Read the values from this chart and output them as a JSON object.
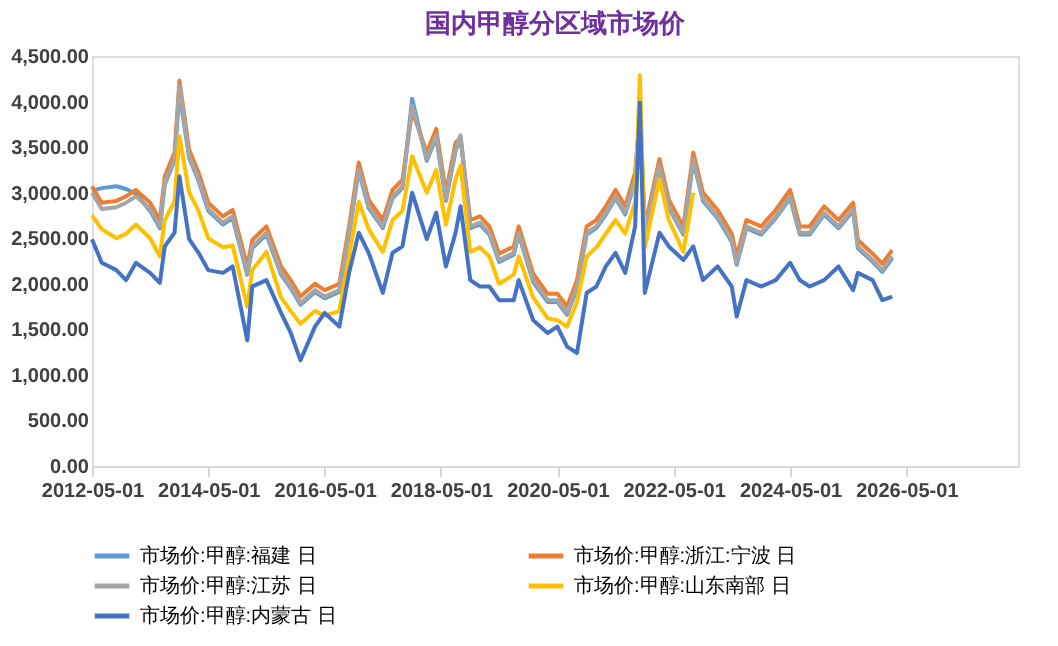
{
  "chart_data": {
    "type": "line",
    "title": "国内甲醇分区域市场价",
    "x": [
      "2012-05",
      "2012-07",
      "2012-10",
      "2012-12",
      "2013-02",
      "2013-05",
      "2013-07",
      "2013-08",
      "2013-10",
      "2013-11",
      "2014-01",
      "2014-03",
      "2014-05",
      "2014-08",
      "2014-10",
      "2015-01",
      "2015-02",
      "2015-05",
      "2015-08",
      "2015-10",
      "2015-12",
      "2016-03",
      "2016-05",
      "2016-08",
      "2016-10",
      "2016-12",
      "2017-02",
      "2017-05",
      "2017-07",
      "2017-09",
      "2017-11",
      "2018-02",
      "2018-04",
      "2018-06",
      "2018-08",
      "2018-09",
      "2018-11",
      "2019-01",
      "2019-03",
      "2019-05",
      "2019-08",
      "2019-09",
      "2019-12",
      "2020-03",
      "2020-05",
      "2020-07",
      "2020-09",
      "2020-11",
      "2021-01",
      "2021-03",
      "2021-05",
      "2021-07",
      "2021-09",
      "2021-10",
      "2021-11",
      "2022-02",
      "2022-04",
      "2022-07",
      "2022-09",
      "2022-11",
      "2023-02",
      "2023-05",
      "2023-06",
      "2023-08",
      "2023-11",
      "2024-02",
      "2024-05",
      "2024-07",
      "2024-09",
      "2024-12",
      "2025-03",
      "2025-06",
      "2025-07",
      "2025-10",
      "2025-12",
      "2026-02"
    ],
    "series": [
      {
        "name": "市场价:甲醇:福建 日",
        "color": "#5b9bd5",
        "values": [
          3020,
          3050,
          3070,
          3040,
          2990,
          2800,
          2610,
          3090,
          3350,
          4100,
          3380,
          3130,
          2800,
          2650,
          2720,
          2100,
          2390,
          2540,
          2100,
          1950,
          1770,
          1910,
          1840,
          1910,
          2540,
          3240,
          2830,
          2610,
          2940,
          3050,
          4030,
          3350,
          3610,
          2910,
          3460,
          3610,
          2610,
          2650,
          2540,
          2240,
          2320,
          2540,
          2020,
          1800,
          1800,
          1660,
          1950,
          2540,
          2610,
          2760,
          2940,
          2760,
          3130,
          3880,
          2540,
          3280,
          2830,
          2540,
          3350,
          2910,
          2720,
          2460,
          2210,
          2610,
          2540,
          2720,
          2940,
          2540,
          2540,
          2760,
          2610,
          2800,
          2390,
          2240,
          2130,
          2280
        ]
      },
      {
        "name": "市场价:甲醇:浙江:宁波 日",
        "color": "#ed7d31",
        "values": [
          3070,
          2890,
          2910,
          2960,
          3030,
          2890,
          2700,
          3180,
          3440,
          4230,
          3470,
          3220,
          2890,
          2740,
          2810,
          2190,
          2480,
          2630,
          2190,
          2040,
          1860,
          2000,
          1930,
          2000,
          2630,
          3330,
          2920,
          2700,
          3030,
          3140,
          3900,
          3440,
          3700,
          3000,
          3550,
          3600,
          2700,
          2740,
          2630,
          2330,
          2410,
          2630,
          2110,
          1890,
          1890,
          1750,
          2040,
          2630,
          2700,
          2850,
          3030,
          2850,
          3220,
          3850,
          2630,
          3370,
          2920,
          2630,
          3440,
          3000,
          2810,
          2550,
          2300,
          2700,
          2630,
          2810,
          3030,
          2630,
          2630,
          2850,
          2700,
          2890,
          2480,
          2330,
          2220,
          2370
        ]
      },
      {
        "name": "市场价:甲醇:江苏 日",
        "color": "#a5a5a5",
        "values": [
          3000,
          2820,
          2840,
          2890,
          2960,
          2820,
          2630,
          3110,
          3370,
          4180,
          3400,
          3150,
          2820,
          2670,
          2740,
          2120,
          2410,
          2560,
          2120,
          1970,
          1790,
          1930,
          1860,
          1930,
          2560,
          3260,
          2850,
          2630,
          2960,
          3070,
          3960,
          3370,
          3630,
          2930,
          3480,
          3630,
          2630,
          2670,
          2560,
          2260,
          2340,
          2560,
          2040,
          1820,
          1820,
          1680,
          1970,
          2560,
          2630,
          2780,
          2960,
          2780,
          3150,
          3900,
          2560,
          3300,
          2850,
          2560,
          3370,
          2930,
          2740,
          2480,
          2230,
          2630,
          2560,
          2740,
          2960,
          2560,
          2560,
          2780,
          2630,
          2820,
          2410,
          2260,
          2150,
          2300
        ]
      },
      {
        "name": "市场价:甲醇:山东南部 日",
        "color": "#ffc000",
        "values": [
          2750,
          2600,
          2500,
          2550,
          2650,
          2500,
          2300,
          2700,
          2900,
          3620,
          3000,
          2800,
          2500,
          2400,
          2420,
          1750,
          2150,
          2350,
          1850,
          1700,
          1560,
          1700,
          1650,
          1700,
          2300,
          2900,
          2600,
          2350,
          2700,
          2800,
          3400,
          3000,
          3250,
          2650,
          3150,
          3300,
          2350,
          2400,
          2300,
          2000,
          2100,
          2300,
          1850,
          1620,
          1600,
          1530,
          1800,
          2300,
          2400,
          2550,
          2700,
          2550,
          2900,
          4290,
          2400,
          3150,
          2700,
          2350,
          3000,
          null,
          null,
          null,
          null,
          null,
          null,
          null,
          null,
          null,
          null,
          null,
          null,
          null,
          null,
          null,
          null,
          null
        ]
      },
      {
        "name": "市场价:甲醇:内蒙古 日",
        "color": "#4472c4",
        "values": [
          2490,
          2230,
          2150,
          2040,
          2230,
          2120,
          2010,
          2410,
          2560,
          3180,
          2490,
          2340,
          2150,
          2120,
          2190,
          1380,
          1970,
          2040,
          1680,
          1460,
          1160,
          1530,
          1680,
          1530,
          2120,
          2560,
          2340,
          1900,
          2340,
          2410,
          3000,
          2490,
          2780,
          2190,
          2560,
          2850,
          2040,
          1970,
          1970,
          1820,
          1820,
          2040,
          1600,
          1460,
          1530,
          1310,
          1240,
          1900,
          1970,
          2190,
          2340,
          2120,
          2630,
          3990,
          1900,
          2560,
          2410,
          2260,
          2410,
          2040,
          2190,
          1970,
          1640,
          2040,
          1970,
          2040,
          2230,
          2040,
          1970,
          2040,
          2190,
          1930,
          2120,
          2040,
          1820,
          1860
        ]
      }
    ],
    "xlim": [
      "2012-05-01",
      "2028-04-01"
    ],
    "xticks": [
      "2012-05-01",
      "2014-05-01",
      "2016-05-01",
      "2018-05-01",
      "2020-05-01",
      "2022-05-01",
      "2024-05-01",
      "2026-05-01"
    ],
    "ylim": [
      0,
      4500
    ],
    "yticks": [
      {
        "value": 0,
        "label": "0.00"
      },
      {
        "value": 500,
        "label": "500.00"
      },
      {
        "value": 1000,
        "label": "1,000.00"
      },
      {
        "value": 1500,
        "label": "1,500.00"
      },
      {
        "value": 2000,
        "label": "2,000.00"
      },
      {
        "value": 2500,
        "label": "2,500.00"
      },
      {
        "value": 3000,
        "label": "3,000.00"
      },
      {
        "value": 3500,
        "label": "3,500.00"
      },
      {
        "value": 4000,
        "label": "4,000.00"
      },
      {
        "value": 4500,
        "label": "4,500.00"
      }
    ],
    "grid": false,
    "legend": "bottom",
    "marker": "none",
    "line_style": "solid"
  }
}
